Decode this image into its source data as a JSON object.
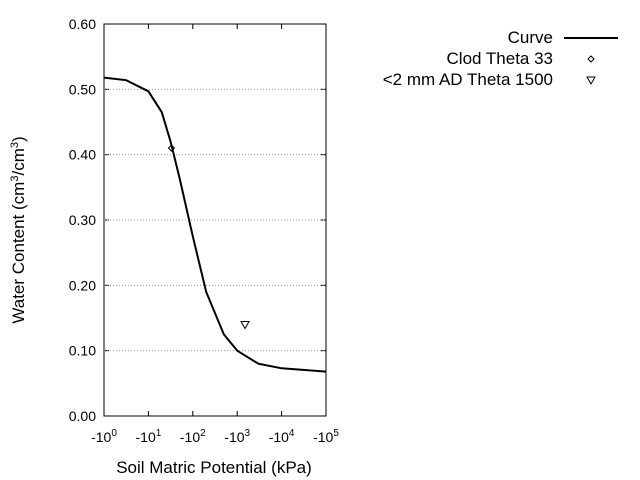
{
  "chart_data": {
    "type": "line",
    "xlabel": "Soil Matric Potential (kPa)",
    "ylabel": [
      "Water Content (cm",
      "3",
      "/cm",
      "3",
      ")"
    ],
    "xscale": "log",
    "xlim": [
      1,
      100000
    ],
    "xticks": [
      {
        "value": 1,
        "label": "-10",
        "exponent": "0"
      },
      {
        "value": 10,
        "label": "-10",
        "exponent": "1"
      },
      {
        "value": 100,
        "label": "-10",
        "exponent": "2"
      },
      {
        "value": 1000,
        "label": "-10",
        "exponent": "3"
      },
      {
        "value": 10000,
        "label": "-10",
        "exponent": "4"
      },
      {
        "value": 100000,
        "label": "-10",
        "exponent": "5"
      }
    ],
    "ylim": [
      0,
      0.6
    ],
    "yticks": [
      {
        "value": 0,
        "label": "0.00"
      },
      {
        "value": 0.1,
        "label": "0.10"
      },
      {
        "value": 0.2,
        "label": "0.20"
      },
      {
        "value": 0.3,
        "label": "0.30"
      },
      {
        "value": 0.4,
        "label": "0.40"
      },
      {
        "value": 0.5,
        "label": "0.50"
      },
      {
        "value": 0.6,
        "label": "0.60"
      }
    ],
    "grid": true,
    "legend": "outside-right",
    "series": [
      {
        "name": "Curve",
        "kind": "line",
        "color": "#000000",
        "x": [
          1,
          3.16,
          10,
          20,
          31.6,
          50,
          100,
          200,
          500,
          1000,
          3000,
          10000,
          100000
        ],
        "values": [
          0.518,
          0.514,
          0.497,
          0.465,
          0.42,
          0.365,
          0.275,
          0.19,
          0.125,
          0.1,
          0.08,
          0.073,
          0.068
        ]
      },
      {
        "name": "Clod Theta 33",
        "kind": "diamond",
        "color": "#000000",
        "x": [
          33
        ],
        "values": [
          0.41
        ]
      },
      {
        "name": "<2 mm AD Theta 1500",
        "kind": "triangle",
        "color": "#000000",
        "x": [
          1500
        ],
        "values": [
          0.14
        ]
      }
    ]
  }
}
